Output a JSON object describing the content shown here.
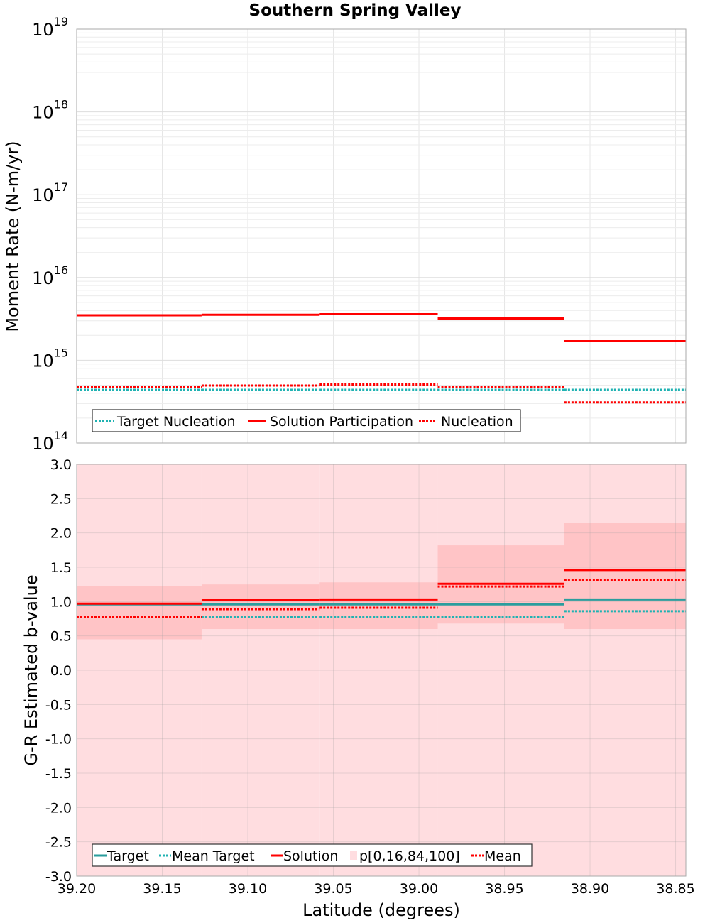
{
  "chart_data": [
    {
      "type": "line",
      "title": "Southern Spring Valley",
      "xlabel": "",
      "ylabel": "Moment Rate (N-m/yr)",
      "yscale": "log",
      "ylim": [
        100000000000000.0,
        1e+19
      ],
      "xlim": [
        39.2,
        38.844
      ],
      "x_reversed": true,
      "grid": true,
      "y_ticks": [
        {
          "base": "10",
          "exp": "14"
        },
        {
          "base": "10",
          "exp": "15"
        },
        {
          "base": "10",
          "exp": "16"
        },
        {
          "base": "10",
          "exp": "17"
        },
        {
          "base": "10",
          "exp": "18"
        },
        {
          "base": "10",
          "exp": "19"
        }
      ],
      "legend": {
        "placement": "bottom-left",
        "entries": [
          "Target Nucleation",
          "Solution Participation",
          "Nucleation"
        ]
      },
      "bin_edges": [
        39.2,
        39.127,
        39.058,
        38.989,
        38.915,
        38.844
      ],
      "series": [
        {
          "name": "Target Nucleation",
          "color": "#1fb2b2",
          "style": "dotted",
          "values": [
            440000000000000.0,
            440000000000000.0,
            440000000000000.0,
            440000000000000.0,
            440000000000000.0
          ]
        },
        {
          "name": "Solution Participation",
          "color": "#ff0000",
          "style": "solid",
          "values": [
            3500000000000000.0,
            3550000000000000.0,
            3600000000000000.0,
            3200000000000000.0,
            1700000000000000.0
          ]
        },
        {
          "name": "Nucleation",
          "color": "#ff0000",
          "style": "dotted",
          "values": [
            480000000000000.0,
            495000000000000.0,
            510000000000000.0,
            480000000000000.0,
            310000000000000.0
          ]
        }
      ]
    },
    {
      "type": "line",
      "title": "",
      "xlabel": "Latitude (degrees)",
      "ylabel": "G-R Estimated b-value",
      "ylim": [
        -3.0,
        3.0
      ],
      "xlim": [
        39.2,
        38.844
      ],
      "x_reversed": true,
      "grid": true,
      "y_ticks": [
        "-3.0",
        "-2.5",
        "-2.0",
        "-1.5",
        "-1.0",
        "-0.5",
        "0.0",
        "0.5",
        "1.0",
        "1.5",
        "2.0",
        "2.5",
        "3.0"
      ],
      "x_ticks": [
        "39.20",
        "39.15",
        "39.10",
        "39.05",
        "39.00",
        "38.95",
        "38.90",
        "38.85"
      ],
      "legend": {
        "placement": "bottom-left",
        "entries": [
          "Target",
          "Mean Target",
          "Solution",
          "p[0,16,84,100]",
          "Mean"
        ]
      },
      "bin_edges": [
        39.2,
        39.127,
        39.058,
        38.989,
        38.915,
        38.844
      ],
      "band_outer": {
        "name": "p[0,16,84,100]",
        "color": "#ffdde0",
        "low": [
          -3.0,
          -3.0,
          -3.0,
          -3.0,
          -3.0
        ],
        "high": [
          3.0,
          3.0,
          3.0,
          3.0,
          3.0
        ]
      },
      "band_inner": {
        "color": "#ffc4c6",
        "low": [
          0.45,
          0.6,
          0.6,
          0.68,
          0.6
        ],
        "high": [
          1.23,
          1.25,
          1.28,
          1.82,
          2.15
        ]
      },
      "series": [
        {
          "name": "Target",
          "color": "#2a9d9d",
          "style": "solid",
          "values": [
            0.96,
            0.96,
            0.96,
            0.96,
            1.03
          ]
        },
        {
          "name": "Mean Target",
          "color": "#1fb2b2",
          "style": "dotted",
          "values": [
            0.78,
            0.78,
            0.78,
            0.78,
            0.86
          ]
        },
        {
          "name": "Solution",
          "color": "#ff0000",
          "style": "solid",
          "values": [
            0.97,
            1.02,
            1.03,
            1.26,
            1.46
          ]
        },
        {
          "name": "Mean",
          "color": "#ff0000",
          "style": "dotted",
          "values": [
            0.78,
            0.89,
            0.91,
            1.22,
            1.31
          ]
        }
      ]
    }
  ]
}
